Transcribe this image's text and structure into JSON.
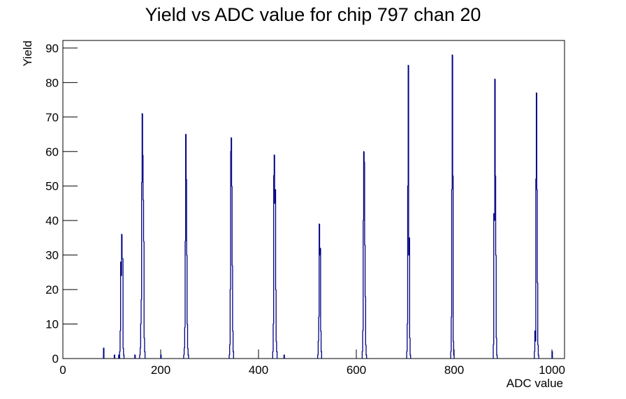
{
  "chart_data": {
    "type": "histogram",
    "title": "Yield vs ADC value for chip 797 chan 20",
    "x_label": "ADC value",
    "y_label": "Yield",
    "color": "#000080",
    "x": [
      83,
      105,
      114,
      116,
      117,
      118,
      119,
      120,
      121,
      122,
      123,
      124,
      147,
      157,
      158,
      159,
      160,
      161,
      162,
      163,
      164,
      165,
      166,
      167,
      200,
      247,
      248,
      249,
      250,
      251,
      252,
      253,
      254,
      255,
      256,
      340,
      341,
      342,
      343,
      344,
      345,
      346,
      347,
      348,
      429,
      430,
      431,
      432,
      433,
      434,
      435,
      436,
      437,
      452,
      521,
      522,
      523,
      524,
      525,
      526,
      527,
      528,
      612,
      613,
      614,
      615,
      616,
      617,
      618,
      619,
      620,
      703,
      704,
      705,
      706,
      707,
      708,
      709,
      710,
      793,
      794,
      795,
      796,
      797,
      798,
      799,
      880,
      881,
      882,
      883,
      884,
      885,
      886,
      887,
      964,
      965,
      966,
      967,
      968,
      969,
      970,
      971,
      972,
      1000
    ],
    "values": [
      3,
      1,
      1,
      2,
      8,
      28,
      24,
      36,
      29,
      29,
      3,
      1,
      1,
      1,
      3,
      10,
      17,
      51,
      71,
      59,
      46,
      34,
      6,
      2,
      1,
      1,
      3,
      9,
      34,
      65,
      52,
      30,
      10,
      3,
      1,
      1,
      4,
      20,
      60,
      64,
      50,
      27,
      8,
      2,
      2,
      10,
      53,
      59,
      45,
      49,
      20,
      5,
      2,
      1,
      1,
      5,
      12,
      39,
      30,
      32,
      8,
      2,
      2,
      8,
      40,
      60,
      57,
      33,
      18,
      4,
      1,
      2,
      10,
      50,
      85,
      30,
      35,
      6,
      1,
      2,
      12,
      49,
      88,
      53,
      5,
      1,
      4,
      42,
      40,
      81,
      53,
      30,
      6,
      1,
      2,
      8,
      5,
      52,
      77,
      49,
      22,
      4,
      1,
      2
    ],
    "xlim": [
      0,
      1024
    ],
    "xticks": [
      0,
      200,
      400,
      600,
      800,
      1000
    ],
    "ylim": [
      0,
      92.2
    ],
    "yticks": [
      0,
      10,
      20,
      30,
      40,
      50,
      60,
      70,
      80,
      90
    ]
  }
}
